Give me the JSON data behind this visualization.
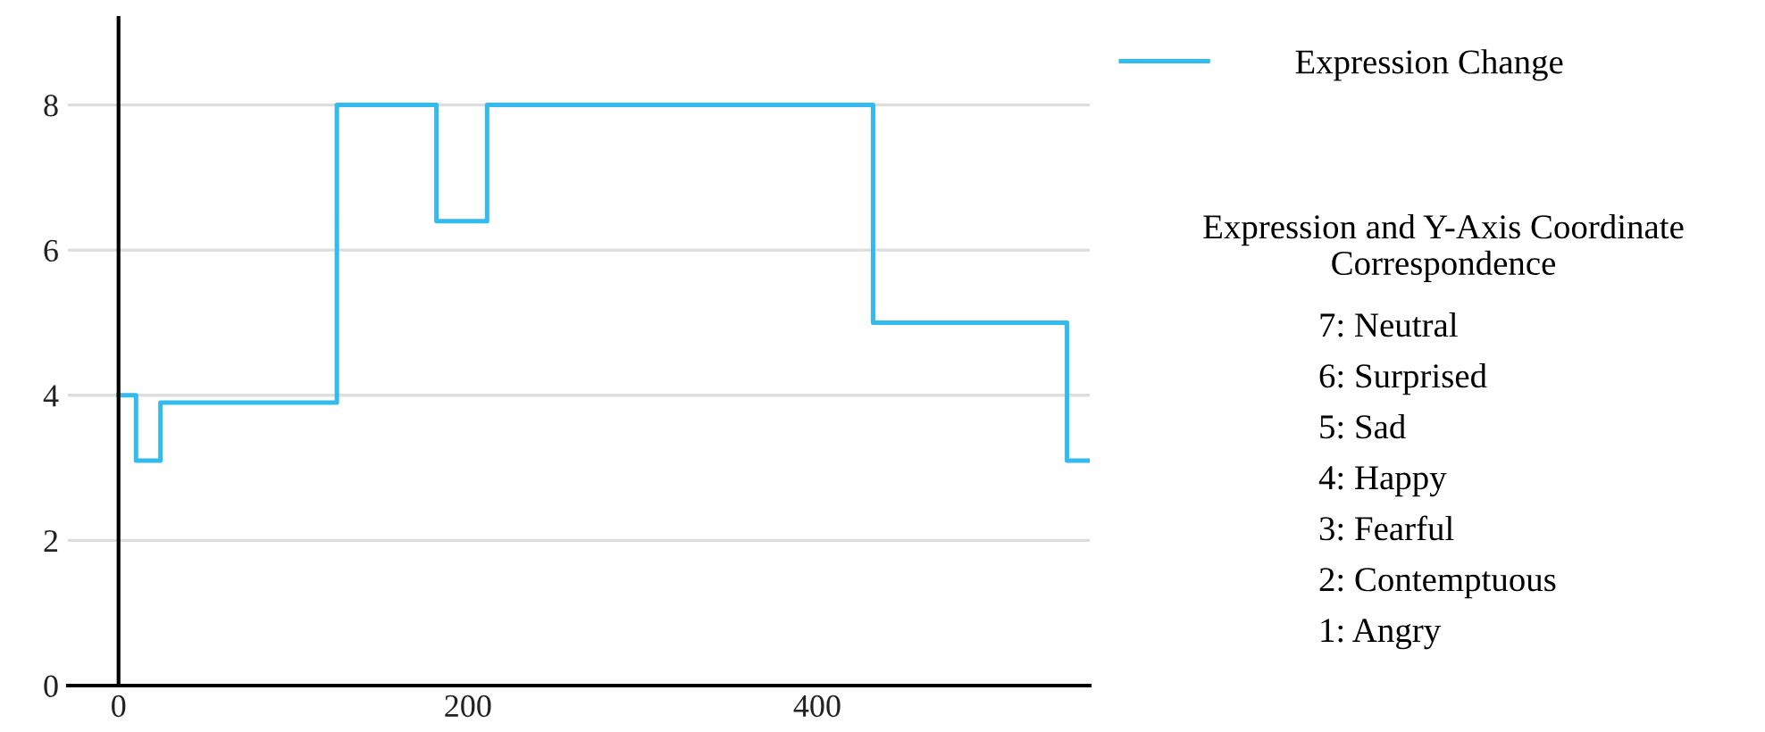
{
  "chart_data": {
    "type": "step",
    "x": [
      0,
      10,
      24,
      125,
      182,
      211,
      432,
      543,
      556
    ],
    "series": [
      {
        "name": "Expression Change",
        "color": "#33bbee",
        "values": [
          4,
          3.1,
          3.9,
          8,
          6.4,
          8,
          5,
          3.1,
          3.1
        ]
      }
    ],
    "xlim": [
      -29,
      556
    ],
    "xticks": [
      0,
      200,
      400
    ],
    "ylim": [
      0,
      9.2
    ],
    "yticks": [
      0,
      2,
      4,
      6,
      8
    ],
    "grid": "y",
    "legend": "top right",
    "line_style": "solid",
    "marker": "none",
    "annotations": [
      "Expression and Y-Axis Coordinate Correspondence",
      "7: Neutral",
      "6: Surprised",
      "5: Sad",
      "4: Happy",
      "3: Fearful",
      "2: Contemptuous",
      "1: Angry"
    ]
  }
}
